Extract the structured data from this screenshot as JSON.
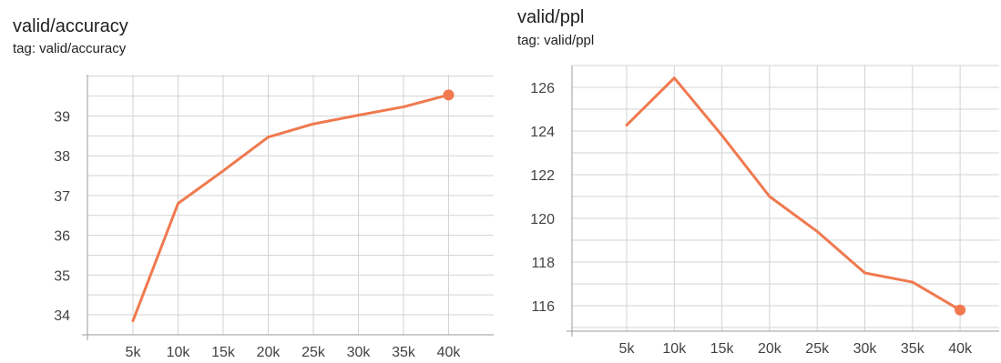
{
  "panels": [
    {
      "title": "valid/accuracy",
      "tag": "tag: valid/accuracy"
    },
    {
      "title": "valid/ppl",
      "tag": "tag: valid/ppl"
    }
  ],
  "colors": {
    "series": "#f0794f",
    "grid": "#d3d3d3",
    "axis": "#9e9e9e"
  },
  "chart_data": [
    {
      "type": "line",
      "title": "valid/accuracy",
      "subtitle": "tag: valid/accuracy",
      "xlabel": "",
      "ylabel": "",
      "x": [
        5000,
        10000,
        15000,
        20000,
        25000,
        30000,
        35000,
        40000
      ],
      "xtick_labels": [
        "5k",
        "10k",
        "15k",
        "20k",
        "25k",
        "30k",
        "35k",
        "40k"
      ],
      "ytick_labels": [
        "34",
        "35",
        "36",
        "37",
        "38",
        "39"
      ],
      "yticks": [
        34,
        35,
        36,
        37,
        38,
        39
      ],
      "series": [
        {
          "values": [
            33.85,
            36.8,
            37.62,
            38.47,
            38.8,
            39.02,
            39.23,
            39.53
          ]
        }
      ],
      "xlim": [
        0,
        45000
      ],
      "ylim": [
        33.5,
        40.0
      ],
      "grid": true,
      "last_point_marker": true
    },
    {
      "type": "line",
      "title": "valid/ppl",
      "subtitle": "tag: valid/ppl",
      "xlabel": "",
      "ylabel": "",
      "x": [
        5000,
        10000,
        15000,
        20000,
        25000,
        30000,
        35000,
        40000
      ],
      "xtick_labels": [
        "5k",
        "10k",
        "15k",
        "20k",
        "25k",
        "30k",
        "35k",
        "40k"
      ],
      "ytick_labels": [
        "116",
        "118",
        "120",
        "122",
        "124",
        "126"
      ],
      "yticks": [
        116,
        118,
        120,
        122,
        124,
        126
      ],
      "series": [
        {
          "values": [
            124.27,
            126.43,
            123.8,
            121.0,
            119.4,
            117.5,
            117.08,
            115.8
          ]
        }
      ],
      "xlim": [
        0,
        45000
      ],
      "ylim": [
        115.0,
        127.0
      ],
      "grid": true,
      "last_point_marker": true
    }
  ]
}
